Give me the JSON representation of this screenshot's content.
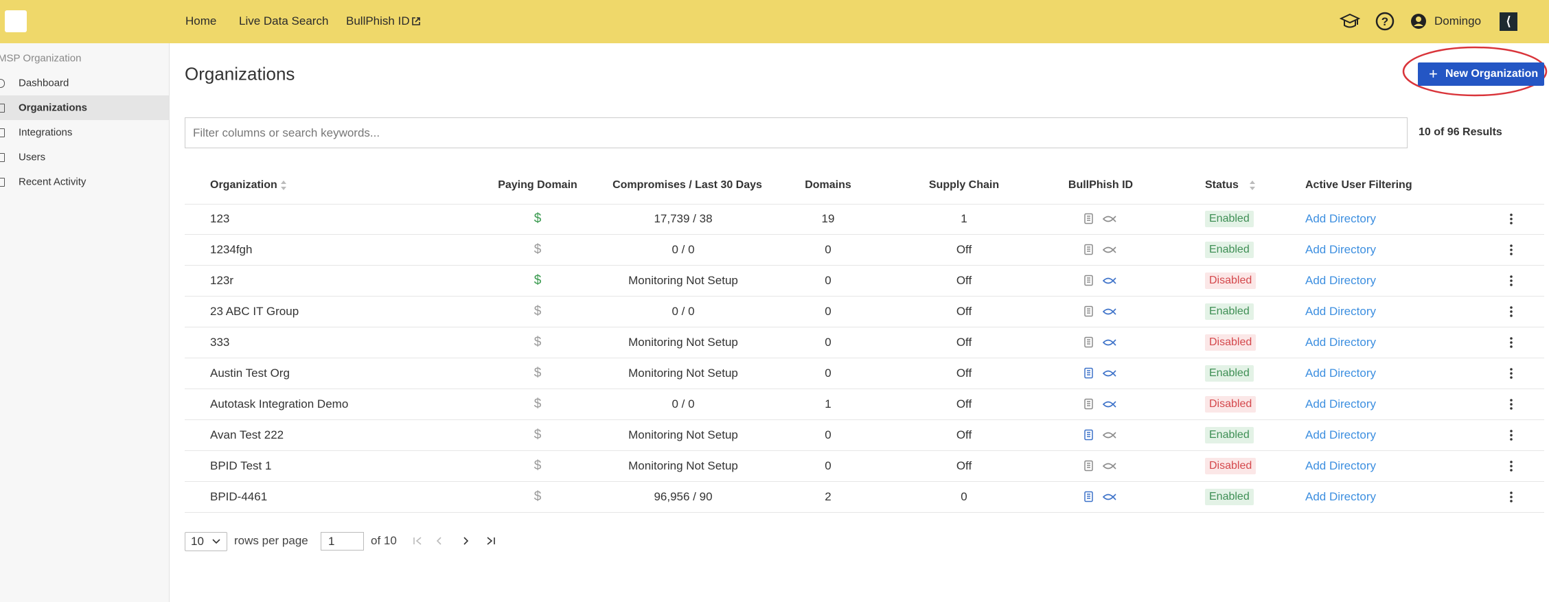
{
  "topbar": {
    "nav": [
      "Home",
      "Live Data Search",
      "BullPhish ID"
    ],
    "user": "Domingo"
  },
  "sidebar": {
    "section": "MSP Organization",
    "items": [
      "Dashboard",
      "Organizations",
      "Integrations",
      "Users",
      "Recent Activity"
    ],
    "active": 1
  },
  "page": {
    "title": "Organizations",
    "new_button": "New Organization",
    "search_placeholder": "Filter columns or search keywords...",
    "results": "10 of 96 Results"
  },
  "table": {
    "headers": [
      "Organization",
      "Paying Domain",
      "Compromises / Last 30 Days",
      "Domains",
      "Supply Chain",
      "BullPhish ID",
      "Status",
      "Active User Filtering"
    ],
    "rows": [
      {
        "name": "123",
        "paying": "$",
        "paying_active": true,
        "compromises": "17,739 / 38",
        "domains": 19,
        "supply_chain": 1,
        "bullphish": [
          false,
          false
        ],
        "status": "Enabled",
        "directory": "Add Directory"
      },
      {
        "name": "1234fgh",
        "paying": "$",
        "paying_active": false,
        "compromises": "0 / 0",
        "domains": 0,
        "supply_chain": "Off",
        "bullphish": [
          false,
          false
        ],
        "status": "Enabled",
        "directory": "Add Directory"
      },
      {
        "name": "123r",
        "paying": "$",
        "paying_active": true,
        "compromises": "Monitoring Not Setup",
        "domains": 0,
        "supply_chain": "Off",
        "bullphish": [
          false,
          true
        ],
        "status": "Disabled",
        "directory": "Add Directory"
      },
      {
        "name": "23 ABC IT Group",
        "paying": "$",
        "paying_active": false,
        "compromises": "0 / 0",
        "domains": 0,
        "supply_chain": "Off",
        "bullphish": [
          false,
          true
        ],
        "status": "Enabled",
        "directory": "Add Directory"
      },
      {
        "name": "333",
        "paying": "$",
        "paying_active": false,
        "compromises": "Monitoring Not Setup",
        "domains": 0,
        "supply_chain": "Off",
        "bullphish": [
          false,
          true
        ],
        "status": "Disabled",
        "directory": "Add Directory"
      },
      {
        "name": "Austin Test Org",
        "paying": "$",
        "paying_active": false,
        "compromises": "Monitoring Not Setup",
        "domains": 0,
        "supply_chain": "Off",
        "bullphish": [
          true,
          true
        ],
        "status": "Enabled",
        "directory": "Add Directory"
      },
      {
        "name": "Autotask Integration Demo",
        "paying": "$",
        "paying_active": false,
        "compromises": "0 / 0",
        "domains": 1,
        "supply_chain": "Off",
        "bullphish": [
          false,
          true
        ],
        "status": "Disabled",
        "directory": "Add Directory"
      },
      {
        "name": "Avan Test 222",
        "paying": "$",
        "paying_active": false,
        "compromises": "Monitoring Not Setup",
        "domains": 0,
        "supply_chain": "Off",
        "bullphish": [
          true,
          false
        ],
        "status": "Enabled",
        "directory": "Add Directory"
      },
      {
        "name": "BPID Test 1",
        "paying": "$",
        "paying_active": false,
        "compromises": "Monitoring Not Setup",
        "domains": 0,
        "supply_chain": "Off",
        "bullphish": [
          false,
          false
        ],
        "status": "Disabled",
        "directory": "Add Directory"
      },
      {
        "name": "BPID-4461",
        "paying": "$",
        "paying_active": false,
        "compromises": "96,956 / 90",
        "domains": 2,
        "supply_chain": 0,
        "bullphish": [
          true,
          true
        ],
        "status": "Enabled",
        "directory": "Add Directory"
      }
    ]
  },
  "pagination": {
    "rows_per_page": 10,
    "rows_per_page_label": "rows per page",
    "page": 1,
    "of_pages": "of 10"
  }
}
